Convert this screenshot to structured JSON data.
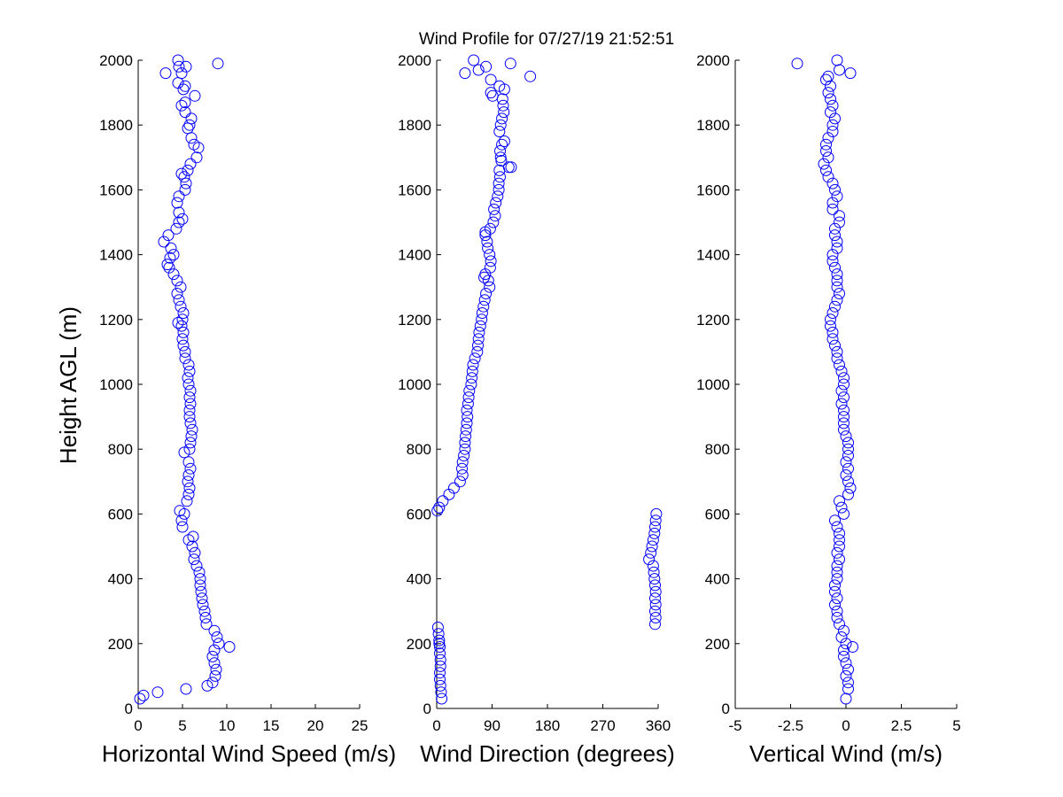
{
  "title": "Wind Profile for  07/27/19 21:52:51",
  "ylabel": "Height AGL (m)",
  "colors": {
    "marker": "#0000ff",
    "axis": "#000000",
    "background": "#ffffff"
  },
  "chart_data": [
    {
      "type": "scatter",
      "xlabel": "Horizontal Wind Speed (m/s)",
      "xlim": [
        0,
        25
      ],
      "ylim": [
        0,
        2000
      ],
      "xticks": [
        "0",
        "5",
        "10",
        "15",
        "20",
        "25"
      ],
      "xtick_values": [
        0,
        5,
        10,
        15,
        20,
        25
      ],
      "yticks": [
        "0",
        "200",
        "400",
        "600",
        "800",
        "1000",
        "1200",
        "1400",
        "1600",
        "1800",
        "2000"
      ],
      "ytick_values": [
        0,
        200,
        400,
        600,
        800,
        1000,
        1200,
        1400,
        1600,
        1800,
        2000
      ],
      "points": [
        [
          0.2,
          30
        ],
        [
          0.6,
          40
        ],
        [
          2.2,
          50
        ],
        [
          5.4,
          60
        ],
        [
          7.8,
          70
        ],
        [
          8.4,
          80
        ],
        [
          8.7,
          100
        ],
        [
          8.8,
          120
        ],
        [
          8.6,
          140
        ],
        [
          8.4,
          160
        ],
        [
          8.6,
          180
        ],
        [
          10.3,
          190
        ],
        [
          9.1,
          200
        ],
        [
          8.9,
          220
        ],
        [
          8.6,
          240
        ],
        [
          7.7,
          260
        ],
        [
          7.6,
          280
        ],
        [
          7.5,
          300
        ],
        [
          7.3,
          320
        ],
        [
          7.2,
          340
        ],
        [
          7.1,
          360
        ],
        [
          7.0,
          380
        ],
        [
          7.0,
          400
        ],
        [
          6.9,
          420
        ],
        [
          6.6,
          440
        ],
        [
          6.3,
          460
        ],
        [
          6.4,
          480
        ],
        [
          6.1,
          500
        ],
        [
          5.7,
          520
        ],
        [
          6.2,
          530
        ],
        [
          5.0,
          560
        ],
        [
          4.9,
          580
        ],
        [
          5.2,
          600
        ],
        [
          4.7,
          610
        ],
        [
          5.5,
          640
        ],
        [
          5.7,
          660
        ],
        [
          5.8,
          680
        ],
        [
          5.6,
          700
        ],
        [
          5.7,
          720
        ],
        [
          5.9,
          740
        ],
        [
          5.7,
          760
        ],
        [
          5.2,
          790
        ],
        [
          5.8,
          800
        ],
        [
          5.9,
          820
        ],
        [
          6.0,
          840
        ],
        [
          6.1,
          860
        ],
        [
          5.9,
          880
        ],
        [
          5.8,
          900
        ],
        [
          5.8,
          920
        ],
        [
          5.9,
          940
        ],
        [
          5.8,
          960
        ],
        [
          5.9,
          980
        ],
        [
          5.7,
          1000
        ],
        [
          5.6,
          1020
        ],
        [
          5.8,
          1040
        ],
        [
          5.7,
          1060
        ],
        [
          5.3,
          1080
        ],
        [
          5.3,
          1100
        ],
        [
          5.1,
          1120
        ],
        [
          5.0,
          1140
        ],
        [
          5.1,
          1160
        ],
        [
          4.9,
          1180
        ],
        [
          4.5,
          1190
        ],
        [
          5.0,
          1200
        ],
        [
          5.1,
          1220
        ],
        [
          4.8,
          1240
        ],
        [
          4.6,
          1260
        ],
        [
          4.4,
          1280
        ],
        [
          4.8,
          1300
        ],
        [
          4.4,
          1320
        ],
        [
          4.0,
          1340
        ],
        [
          3.5,
          1360
        ],
        [
          3.3,
          1370
        ],
        [
          3.6,
          1390
        ],
        [
          4.0,
          1400
        ],
        [
          3.7,
          1420
        ],
        [
          2.9,
          1440
        ],
        [
          3.4,
          1460
        ],
        [
          4.3,
          1480
        ],
        [
          4.6,
          1500
        ],
        [
          5.0,
          1510
        ],
        [
          4.6,
          1530
        ],
        [
          4.4,
          1560
        ],
        [
          4.6,
          1580
        ],
        [
          5.3,
          1600
        ],
        [
          5.4,
          1620
        ],
        [
          5.2,
          1640
        ],
        [
          4.9,
          1650
        ],
        [
          5.6,
          1660
        ],
        [
          5.9,
          1680
        ],
        [
          6.6,
          1700
        ],
        [
          6.8,
          1730
        ],
        [
          6.3,
          1740
        ],
        [
          6.0,
          1760
        ],
        [
          5.6,
          1790
        ],
        [
          5.8,
          1800
        ],
        [
          6.0,
          1820
        ],
        [
          5.3,
          1840
        ],
        [
          4.9,
          1860
        ],
        [
          5.3,
          1870
        ],
        [
          6.4,
          1890
        ],
        [
          5.1,
          1910
        ],
        [
          5.3,
          1920
        ],
        [
          4.5,
          1930
        ],
        [
          4.9,
          1960
        ],
        [
          3.1,
          1960
        ],
        [
          5.4,
          1980
        ],
        [
          4.6,
          1980
        ],
        [
          9.0,
          1990
        ],
        [
          4.5,
          2000
        ]
      ]
    },
    {
      "type": "scatter",
      "xlabel": "Wind Direction (degrees)",
      "xlim": [
        0,
        360
      ],
      "ylim": [
        0,
        2000
      ],
      "xticks": [
        "0",
        "90",
        "180",
        "270",
        "360"
      ],
      "xtick_values": [
        0,
        90,
        180,
        270,
        360
      ],
      "yticks": [
        "0",
        "200",
        "400",
        "600",
        "800",
        "1000",
        "1200",
        "1400",
        "1600",
        "1800",
        "2000"
      ],
      "ytick_values": [
        0,
        200,
        400,
        600,
        800,
        1000,
        1200,
        1400,
        1600,
        1800,
        2000
      ],
      "points": [
        [
          8,
          30
        ],
        [
          7,
          50
        ],
        [
          6,
          70
        ],
        [
          5,
          90
        ],
        [
          5,
          110
        ],
        [
          6,
          130
        ],
        [
          6,
          150
        ],
        [
          5,
          170
        ],
        [
          5,
          190
        ],
        [
          4,
          200
        ],
        [
          4,
          210
        ],
        [
          3,
          230
        ],
        [
          2,
          250
        ],
        [
          355,
          260
        ],
        [
          356,
          280
        ],
        [
          355,
          300
        ],
        [
          356,
          320
        ],
        [
          355,
          340
        ],
        [
          356,
          360
        ],
        [
          355,
          380
        ],
        [
          354,
          400
        ],
        [
          353,
          420
        ],
        [
          352,
          440
        ],
        [
          345,
          460
        ],
        [
          348,
          480
        ],
        [
          350,
          500
        ],
        [
          352,
          520
        ],
        [
          354,
          540
        ],
        [
          355,
          560
        ],
        [
          356,
          580
        ],
        [
          357,
          600
        ],
        [
          1,
          610
        ],
        [
          4,
          620
        ],
        [
          10,
          640
        ],
        [
          20,
          660
        ],
        [
          28,
          680
        ],
        [
          38,
          700
        ],
        [
          42,
          720
        ],
        [
          41,
          740
        ],
        [
          42,
          760
        ],
        [
          44,
          780
        ],
        [
          46,
          800
        ],
        [
          46,
          820
        ],
        [
          47,
          840
        ],
        [
          48,
          860
        ],
        [
          49,
          880
        ],
        [
          50,
          900
        ],
        [
          49,
          920
        ],
        [
          51,
          940
        ],
        [
          52,
          960
        ],
        [
          53,
          980
        ],
        [
          56,
          1000
        ],
        [
          57,
          1020
        ],
        [
          58,
          1040
        ],
        [
          59,
          1060
        ],
        [
          62,
          1080
        ],
        [
          66,
          1100
        ],
        [
          67,
          1120
        ],
        [
          68,
          1140
        ],
        [
          69,
          1160
        ],
        [
          71,
          1180
        ],
        [
          73,
          1200
        ],
        [
          74,
          1220
        ],
        [
          76,
          1240
        ],
        [
          78,
          1260
        ],
        [
          80,
          1280
        ],
        [
          86,
          1300
        ],
        [
          84,
          1320
        ],
        [
          77,
          1330
        ],
        [
          79,
          1340
        ],
        [
          87,
          1360
        ],
        [
          88,
          1380
        ],
        [
          86,
          1400
        ],
        [
          83,
          1420
        ],
        [
          82,
          1440
        ],
        [
          79,
          1460
        ],
        [
          79,
          1470
        ],
        [
          87,
          1480
        ],
        [
          92,
          1500
        ],
        [
          95,
          1520
        ],
        [
          93,
          1540
        ],
        [
          96,
          1560
        ],
        [
          99,
          1580
        ],
        [
          101,
          1600
        ],
        [
          101,
          1620
        ],
        [
          103,
          1640
        ],
        [
          102,
          1660
        ],
        [
          117,
          1670
        ],
        [
          121,
          1670
        ],
        [
          105,
          1690
        ],
        [
          104,
          1700
        ],
        [
          103,
          1720
        ],
        [
          106,
          1740
        ],
        [
          110,
          1750
        ],
        [
          102,
          1780
        ],
        [
          104,
          1800
        ],
        [
          106,
          1820
        ],
        [
          109,
          1840
        ],
        [
          108,
          1860
        ],
        [
          107,
          1880
        ],
        [
          91,
          1890
        ],
        [
          88,
          1900
        ],
        [
          110,
          1910
        ],
        [
          102,
          1920
        ],
        [
          88,
          1940
        ],
        [
          152,
          1950
        ],
        [
          46,
          1960
        ],
        [
          68,
          1970
        ],
        [
          80,
          1980
        ],
        [
          60,
          2000
        ],
        [
          120,
          1990
        ]
      ]
    },
    {
      "type": "scatter",
      "xlabel": "Vertical Wind (m/s)",
      "xlim": [
        -5,
        5
      ],
      "ylim": [
        0,
        2000
      ],
      "xticks": [
        "-5",
        "-2.5",
        "0",
        "2.5",
        "5"
      ],
      "xtick_values": [
        -5,
        -2.5,
        0,
        2.5,
        5
      ],
      "yticks": [
        "0",
        "200",
        "400",
        "600",
        "800",
        "1000",
        "1200",
        "1400",
        "1600",
        "1800",
        "2000"
      ],
      "ytick_values": [
        0,
        200,
        400,
        600,
        800,
        1000,
        1200,
        1400,
        1600,
        1800,
        2000
      ],
      "points": [
        [
          0.0,
          30
        ],
        [
          0.1,
          60
        ],
        [
          0.1,
          80
        ],
        [
          0.0,
          100
        ],
        [
          0.1,
          120
        ],
        [
          0.0,
          140
        ],
        [
          -0.1,
          160
        ],
        [
          -0.1,
          180
        ],
        [
          0.3,
          190
        ],
        [
          0.0,
          200
        ],
        [
          -0.2,
          220
        ],
        [
          -0.1,
          240
        ],
        [
          -0.3,
          260
        ],
        [
          -0.4,
          280
        ],
        [
          -0.4,
          300
        ],
        [
          -0.5,
          320
        ],
        [
          -0.4,
          340
        ],
        [
          -0.5,
          360
        ],
        [
          -0.5,
          380
        ],
        [
          -0.4,
          400
        ],
        [
          -0.4,
          420
        ],
        [
          -0.4,
          440
        ],
        [
          -0.3,
          460
        ],
        [
          -0.4,
          480
        ],
        [
          -0.3,
          500
        ],
        [
          -0.3,
          520
        ],
        [
          -0.3,
          540
        ],
        [
          -0.4,
          560
        ],
        [
          -0.5,
          580
        ],
        [
          -0.1,
          600
        ],
        [
          -0.2,
          620
        ],
        [
          -0.3,
          640
        ],
        [
          0.1,
          660
        ],
        [
          0.2,
          680
        ],
        [
          0.1,
          700
        ],
        [
          0.0,
          720
        ],
        [
          0.1,
          740
        ],
        [
          0.0,
          760
        ],
        [
          0.1,
          780
        ],
        [
          0.1,
          800
        ],
        [
          0.1,
          820
        ],
        [
          0.0,
          840
        ],
        [
          -0.1,
          860
        ],
        [
          -0.1,
          880
        ],
        [
          -0.1,
          900
        ],
        [
          -0.1,
          920
        ],
        [
          -0.2,
          940
        ],
        [
          -0.1,
          960
        ],
        [
          -0.2,
          980
        ],
        [
          -0.1,
          1000
        ],
        [
          -0.1,
          1020
        ],
        [
          -0.2,
          1040
        ],
        [
          -0.3,
          1060
        ],
        [
          -0.4,
          1080
        ],
        [
          -0.4,
          1100
        ],
        [
          -0.5,
          1120
        ],
        [
          -0.6,
          1140
        ],
        [
          -0.6,
          1160
        ],
        [
          -0.7,
          1180
        ],
        [
          -0.7,
          1200
        ],
        [
          -0.6,
          1220
        ],
        [
          -0.5,
          1240
        ],
        [
          -0.4,
          1260
        ],
        [
          -0.3,
          1280
        ],
        [
          -0.4,
          1300
        ],
        [
          -0.4,
          1320
        ],
        [
          -0.4,
          1340
        ],
        [
          -0.5,
          1360
        ],
        [
          -0.6,
          1380
        ],
        [
          -0.6,
          1400
        ],
        [
          -0.4,
          1420
        ],
        [
          -0.4,
          1440
        ],
        [
          -0.5,
          1460
        ],
        [
          -0.5,
          1480
        ],
        [
          -0.3,
          1500
        ],
        [
          -0.3,
          1520
        ],
        [
          -0.6,
          1540
        ],
        [
          -0.6,
          1560
        ],
        [
          -0.4,
          1580
        ],
        [
          -0.5,
          1600
        ],
        [
          -0.6,
          1620
        ],
        [
          -0.8,
          1640
        ],
        [
          -0.9,
          1660
        ],
        [
          -1.0,
          1680
        ],
        [
          -0.8,
          1700
        ],
        [
          -0.9,
          1720
        ],
        [
          -0.9,
          1740
        ],
        [
          -0.8,
          1760
        ],
        [
          -0.6,
          1780
        ],
        [
          -0.6,
          1800
        ],
        [
          -0.5,
          1820
        ],
        [
          -0.7,
          1840
        ],
        [
          -0.6,
          1860
        ],
        [
          -0.7,
          1880
        ],
        [
          -0.8,
          1900
        ],
        [
          -0.7,
          1920
        ],
        [
          -0.9,
          1940
        ],
        [
          -0.8,
          1950
        ],
        [
          -0.3,
          1970
        ],
        [
          0.2,
          1960
        ],
        [
          -0.4,
          2000
        ],
        [
          -2.2,
          1990
        ]
      ]
    }
  ]
}
